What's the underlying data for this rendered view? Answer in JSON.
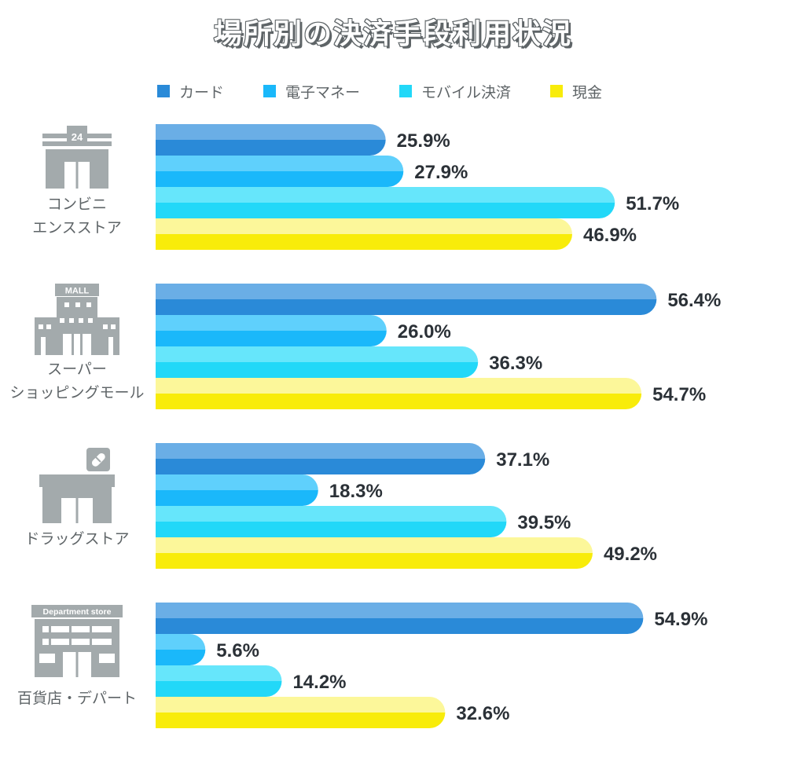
{
  "chart_data": {
    "type": "bar",
    "orientation": "horizontal",
    "title": "場所別の決済手段利用状況",
    "unit": "%",
    "xlim": [
      0,
      100
    ],
    "legend_position": "top",
    "categories": [
      {
        "lines": [
          "コンビニ",
          "エンスストア"
        ],
        "icon": "convenience-store-icon",
        "icon_text": "24"
      },
      {
        "lines": [
          "スーパー",
          "ショッピングモール"
        ],
        "icon": "mall-icon",
        "icon_text": "MALL"
      },
      {
        "lines": [
          "ドラッグストア"
        ],
        "icon": "drugstore-icon",
        "icon_text": ""
      },
      {
        "lines": [
          "百貨店・デパート"
        ],
        "icon": "department-store-icon",
        "icon_text": "Department store"
      }
    ],
    "series": [
      {
        "name": "カード",
        "color": "#2a8ad8",
        "light": "#6aaee6",
        "values": [
          25.9,
          56.4,
          37.1,
          54.9
        ],
        "labels": [
          "25.9%",
          "56.4%",
          "37.1%",
          "54.9%"
        ]
      },
      {
        "name": "電子マネー",
        "color": "#1ab8fa",
        "light": "#5fd0fc",
        "values": [
          27.9,
          26.0,
          18.3,
          5.6
        ],
        "labels": [
          "27.9%",
          "26.0%",
          "18.3%",
          "5.6%"
        ]
      },
      {
        "name": "モバイル決済",
        "color": "#22d8f8",
        "light": "#66e6fb",
        "values": [
          51.7,
          36.3,
          39.5,
          14.2
        ],
        "labels": [
          "51.7%",
          "36.3%",
          "39.5%",
          "14.2%"
        ]
      },
      {
        "name": "現金",
        "color": "#f8ec0a",
        "light": "#fcf79a",
        "values": [
          46.9,
          54.7,
          49.2,
          32.6
        ],
        "labels": [
          "46.9%",
          "54.7%",
          "49.2%",
          "32.6%"
        ]
      }
    ]
  }
}
